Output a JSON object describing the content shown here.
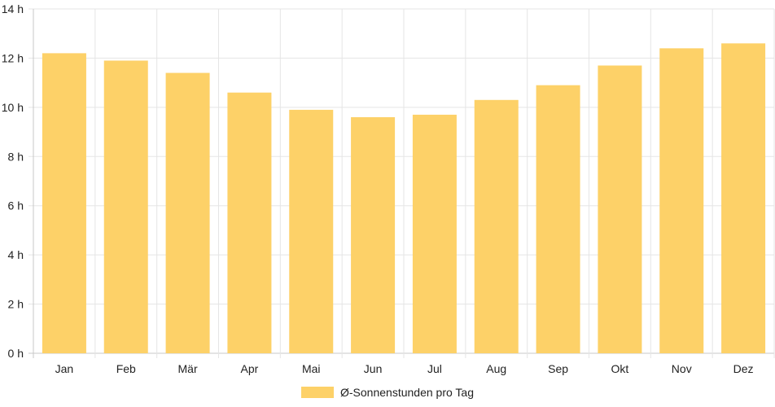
{
  "chart_data": {
    "type": "bar",
    "categories": [
      "Jan",
      "Feb",
      "Mär",
      "Apr",
      "Mai",
      "Jun",
      "Jul",
      "Aug",
      "Sep",
      "Okt",
      "Nov",
      "Dez"
    ],
    "series": [
      {
        "name": "Ø-Sonnenstunden pro Tag",
        "color": "#fdd168",
        "values": [
          12.2,
          11.9,
          11.4,
          10.6,
          9.9,
          9.6,
          9.7,
          10.3,
          10.9,
          11.7,
          12.4,
          12.6
        ]
      }
    ],
    "ylim": [
      0,
      14
    ],
    "yticks": [
      "0 h",
      "2 h",
      "4 h",
      "6 h",
      "8 h",
      "10 h",
      "12 h",
      "14 h"
    ],
    "grid": true,
    "legend_position": "bottom"
  }
}
